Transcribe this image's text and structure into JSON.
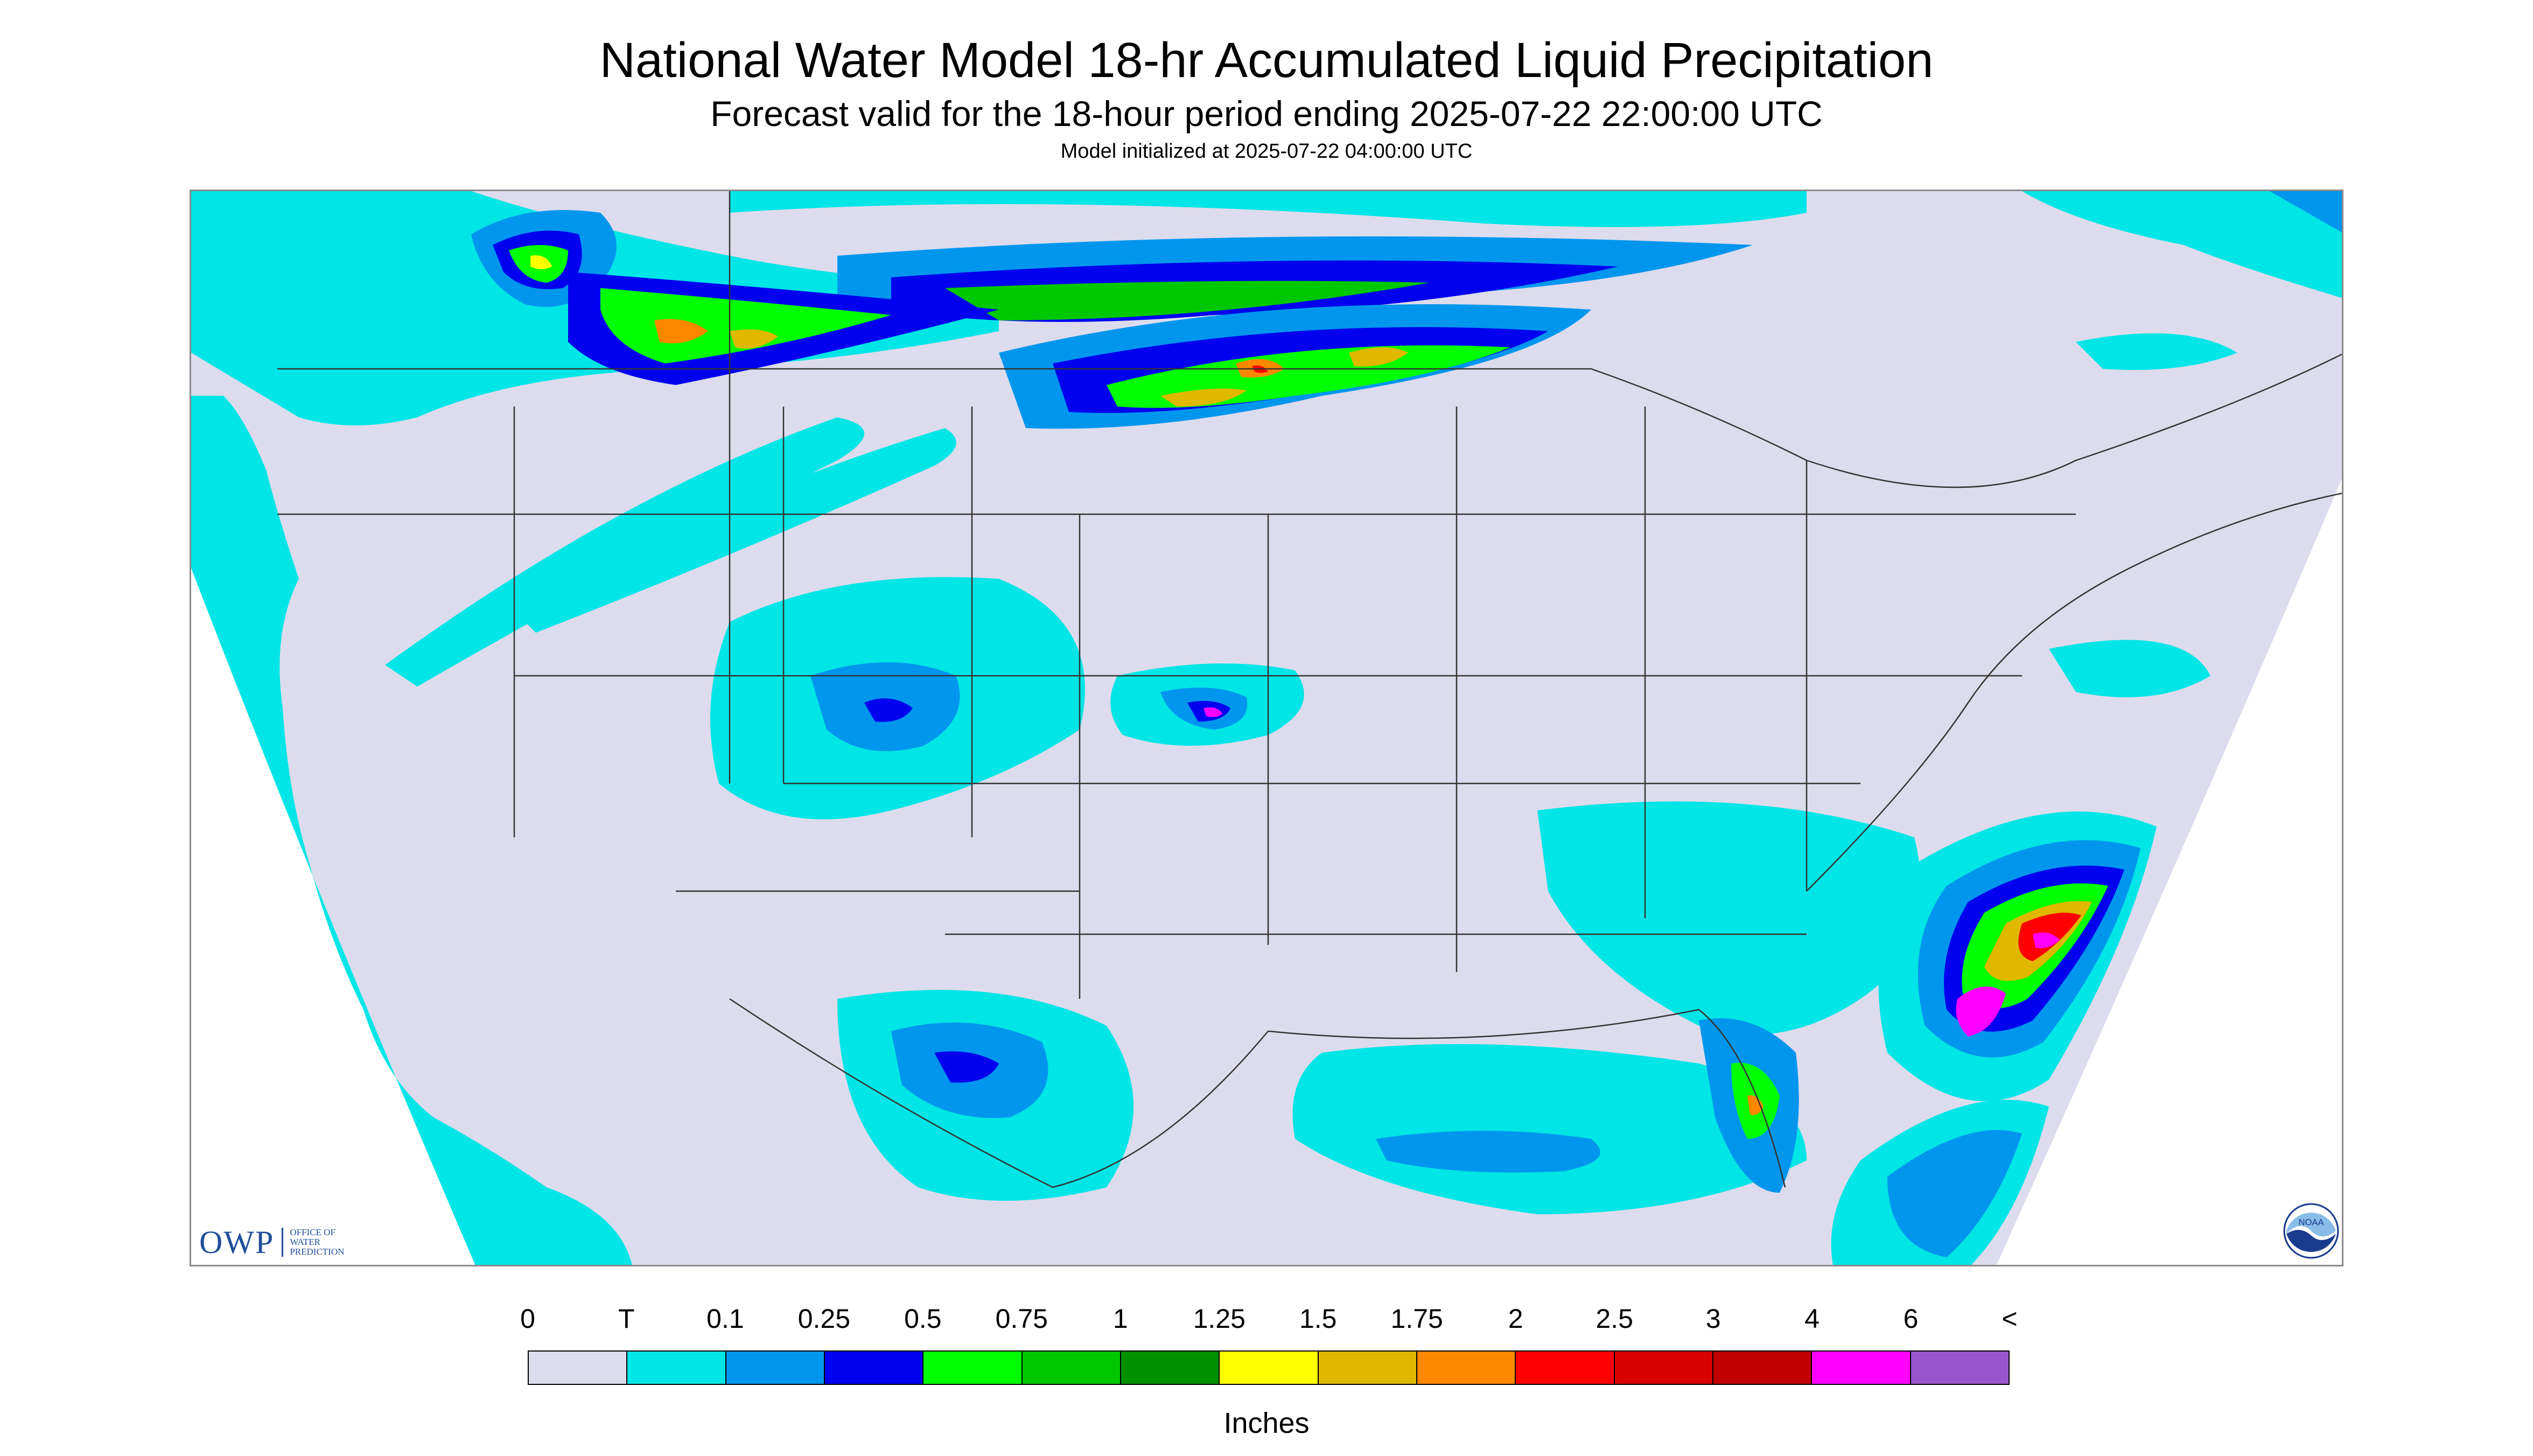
{
  "header": {
    "title": "National Water Model 18-hr Accumulated Liquid Precipitation",
    "subtitle": "Forecast valid for the 18-hour period ending 2025-07-22 22:00:00 UTC",
    "init_line": "Model initialized at 2025-07-22 04:00:00 UTC"
  },
  "legend": {
    "labels": [
      "0",
      "T",
      "0.1",
      "0.25",
      "0.5",
      "0.75",
      "1",
      "1.25",
      "1.5",
      "1.75",
      "2",
      "2.5",
      "3",
      "4",
      "6",
      "<"
    ],
    "colors": [
      "#dcdcee",
      "#00e5e5",
      "#0096ee",
      "#0000ee",
      "#00ff00",
      "#00c800",
      "#009000",
      "#ffff00",
      "#e0b800",
      "#ff8800",
      "#ff0000",
      "#d80000",
      "#c00000",
      "#ff00ff",
      "#9955cc"
    ],
    "units": "Inches"
  },
  "logos": {
    "owp_mark": "OWP",
    "owp_text": "OFFICE OF WATER PREDICTION",
    "noaa_text": "NOAA"
  },
  "map": {
    "background": "#dcdcee",
    "outside": "#00e5e5",
    "icons": [
      "owp-logo",
      "noaa-logo"
    ]
  }
}
